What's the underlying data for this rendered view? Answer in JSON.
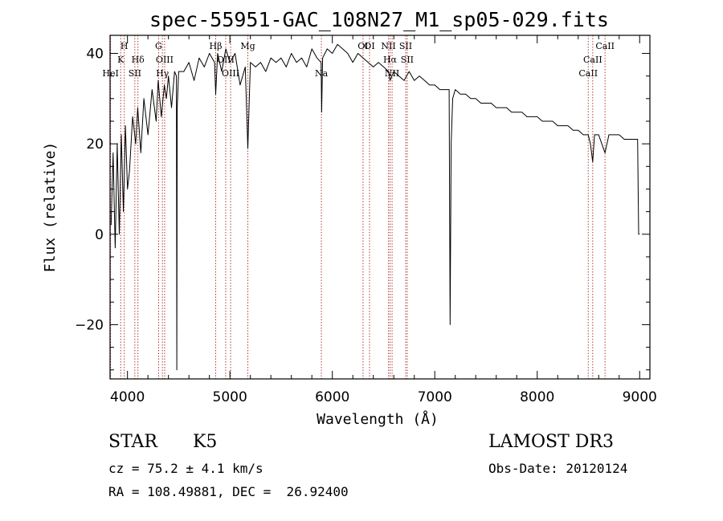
{
  "chart_data": {
    "type": "line",
    "title": "spec-55951-GAC_108N27_M1_sp05-029.fits",
    "xlabel": "Wavelength (Å)",
    "ylabel": "Flux (relative)",
    "xlim": [
      3830,
      9100
    ],
    "ylim": [
      -32,
      44
    ],
    "xticks": [
      4000,
      5000,
      6000,
      7000,
      8000,
      9000
    ],
    "yticks": [
      -20,
      0,
      20,
      40
    ],
    "series": [
      {
        "name": "flux",
        "x": [
          3840,
          3860,
          3880,
          3900,
          3920,
          3940,
          3960,
          3980,
          4000,
          4020,
          4050,
          4080,
          4100,
          4130,
          4160,
          4200,
          4240,
          4280,
          4300,
          4330,
          4360,
          4380,
          4400,
          4430,
          4460,
          4478,
          4482,
          4486,
          4500,
          4550,
          4600,
          4650,
          4700,
          4750,
          4800,
          4850,
          4861,
          4880,
          4920,
          4960,
          5000,
          5050,
          5100,
          5150,
          5175,
          5200,
          5250,
          5300,
          5350,
          5400,
          5450,
          5500,
          5550,
          5600,
          5650,
          5700,
          5750,
          5800,
          5850,
          5890,
          5896,
          5905,
          5950,
          6000,
          6050,
          6100,
          6150,
          6200,
          6250,
          6300,
          6350,
          6400,
          6450,
          6500,
          6550,
          6563,
          6600,
          6650,
          6700,
          6750,
          6800,
          6850,
          6900,
          6950,
          7000,
          7050,
          7100,
          7140,
          7150,
          7160,
          7175,
          7200,
          7250,
          7300,
          7350,
          7400,
          7450,
          7500,
          7550,
          7600,
          7650,
          7700,
          7750,
          7800,
          7850,
          7900,
          7950,
          8000,
          8050,
          8100,
          8150,
          8200,
          8250,
          8300,
          8350,
          8400,
          8450,
          8498,
          8520,
          8542,
          8560,
          8600,
          8662,
          8700,
          8750,
          8800,
          8850,
          8900,
          8950,
          8980,
          8990,
          9000
        ],
        "y": [
          2,
          18,
          -3,
          20,
          0,
          22,
          5,
          24,
          10,
          14,
          26,
          20,
          28,
          18,
          30,
          22,
          32,
          25,
          34,
          26,
          33,
          30,
          35,
          28,
          36,
          35,
          -30,
          28,
          36,
          36,
          38,
          34,
          39,
          37,
          40,
          38,
          31,
          40,
          36,
          41,
          38,
          40,
          33,
          37,
          19,
          38,
          37,
          38,
          36,
          39,
          38,
          39,
          37,
          40,
          38,
          39,
          37,
          41,
          39,
          38,
          27,
          39,
          41,
          40,
          42,
          41,
          40,
          38,
          40,
          39,
          38,
          37,
          38,
          37,
          36,
          34,
          36,
          35,
          34,
          36,
          34,
          35,
          34,
          33,
          33,
          32,
          32,
          32,
          -20,
          20,
          30,
          32,
          31,
          31,
          30,
          30,
          29,
          29,
          29,
          28,
          28,
          28,
          27,
          27,
          27,
          26,
          26,
          26,
          25,
          25,
          25,
          24,
          24,
          24,
          23,
          23,
          22,
          22,
          20,
          16,
          22,
          22,
          18,
          22,
          22,
          22,
          21,
          21,
          21,
          21,
          0,
          0
        ]
      }
    ],
    "lines": [
      {
        "wl": 3835,
        "label": "HeI",
        "tier": 2
      },
      {
        "wl": 3934,
        "label": "K",
        "tier": 1
      },
      {
        "wl": 3969,
        "label": "H",
        "tier": 0
      },
      {
        "wl": 4072,
        "label": "SII",
        "tier": 2
      },
      {
        "wl": 4102,
        "label": "Hδ",
        "tier": 1
      },
      {
        "wl": 4304,
        "label": "G",
        "tier": 0
      },
      {
        "wl": 4341,
        "label": "Hγ",
        "tier": 2
      },
      {
        "wl": 4363,
        "label": "OIII",
        "tier": 1
      },
      {
        "wl": 4861,
        "label": "Hβ",
        "tier": 0
      },
      {
        "wl": 4959,
        "label": "OIII",
        "tier": 1
      },
      {
        "wl": 5007,
        "label": "OIII",
        "tier": 2
      },
      {
        "wl": 5175,
        "label": "Mg",
        "tier": 0
      },
      {
        "wl": 5893,
        "label": "Na",
        "tier": 2
      },
      {
        "wl": 6300,
        "label": "OI",
        "tier": 0
      },
      {
        "wl": 6363,
        "label": "OI",
        "tier": 0
      },
      {
        "wl": 6548,
        "label": "NII",
        "tier": 0
      },
      {
        "wl": 6563,
        "label": "Hα",
        "tier": 1
      },
      {
        "wl": 6583,
        "label": "NII",
        "tier": 2
      },
      {
        "wl": 6716,
        "label": "SII",
        "tier": 0
      },
      {
        "wl": 6731,
        "label": "SII",
        "tier": 1
      },
      {
        "wl": 8498,
        "label": "CaII",
        "tier": 2
      },
      {
        "wl": 8542,
        "label": "CaII",
        "tier": 1
      },
      {
        "wl": 8662,
        "label": "CaII",
        "tier": 0
      }
    ]
  },
  "info": {
    "class": "STAR",
    "subclass": "K5",
    "survey": "LAMOST DR3",
    "cz": "cz = 75.2 ± 4.1 km/s",
    "obsdate": "Obs-Date: 20120124",
    "radec": "RA = 108.49881, DEC =  26.92400"
  },
  "colors": {
    "lines": "#aa2222",
    "spectrum": "#000000"
  }
}
